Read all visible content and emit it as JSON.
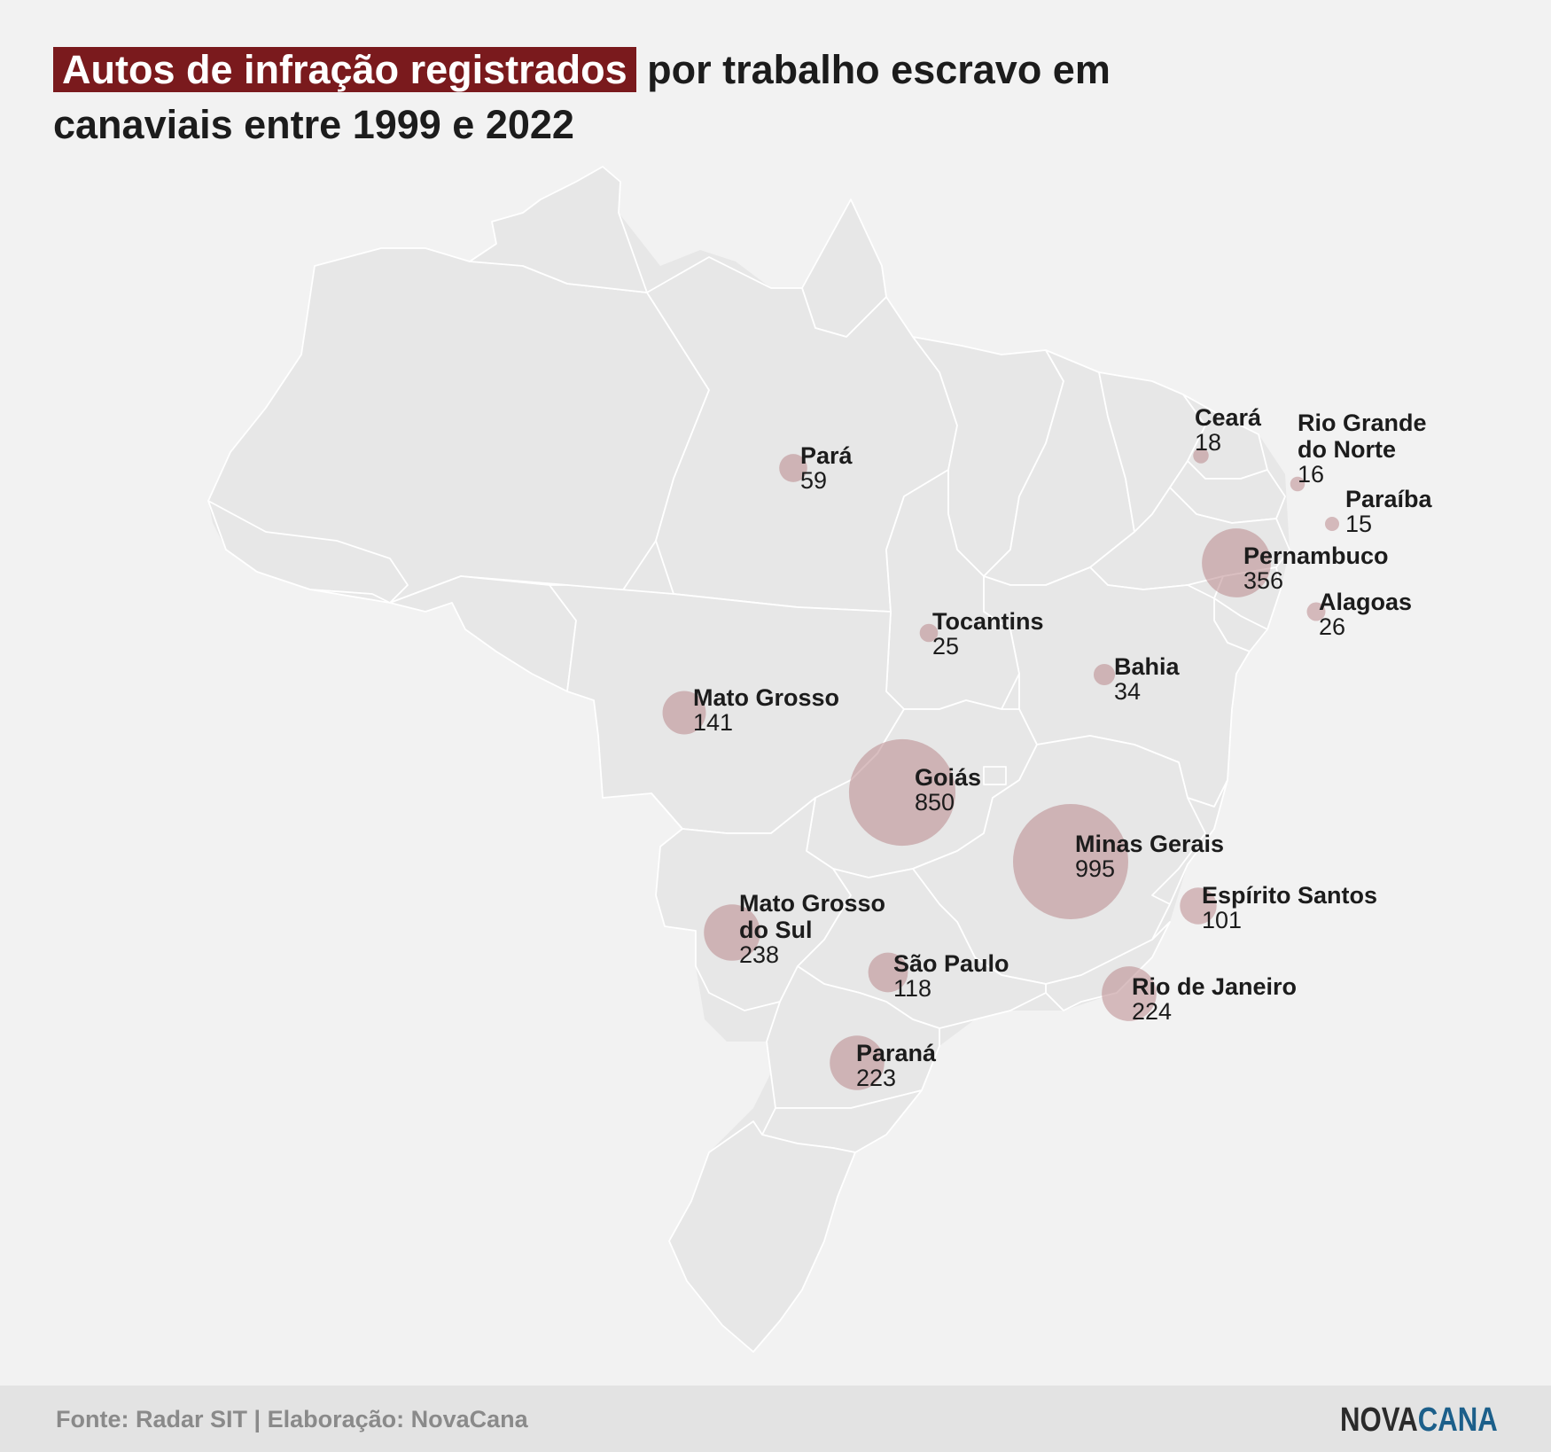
{
  "title": {
    "highlight": "Autos de infração registrados",
    "rest": " por trabalho escravo em canaviais entre 1999 e 2022"
  },
  "colors": {
    "highlight_bg": "#7a1a1d",
    "map_fill": "#e7e7e7",
    "bubble": "#b57f83",
    "logo_dark": "#2b2b2b",
    "logo_accent": "#1c5f8a"
  },
  "states": [
    {
      "name": "Pará",
      "lines": [
        "Pará"
      ],
      "value": 59
    },
    {
      "name": "Ceará",
      "lines": [
        "Ceará"
      ],
      "value": 18
    },
    {
      "name": "Rio Grande do Norte",
      "lines": [
        "Rio Grande",
        "do Norte"
      ],
      "value": 16
    },
    {
      "name": "Paraíba",
      "lines": [
        "Paraíba"
      ],
      "value": 15
    },
    {
      "name": "Pernambuco",
      "lines": [
        "Pernambuco"
      ],
      "value": 356
    },
    {
      "name": "Alagoas",
      "lines": [
        "Alagoas"
      ],
      "value": 26
    },
    {
      "name": "Tocantins",
      "lines": [
        "Tocantins"
      ],
      "value": 25
    },
    {
      "name": "Bahia",
      "lines": [
        "Bahia"
      ],
      "value": 34
    },
    {
      "name": "Mato Grosso",
      "lines": [
        "Mato Grosso"
      ],
      "value": 141
    },
    {
      "name": "Goiás",
      "lines": [
        "Goiás"
      ],
      "value": 850
    },
    {
      "name": "Minas Gerais",
      "lines": [
        "Minas Gerais"
      ],
      "value": 995
    },
    {
      "name": "Espírito Santos",
      "lines": [
        "Espírito Santos"
      ],
      "value": 101
    },
    {
      "name": "Mato Grosso do Sul",
      "lines": [
        "Mato Grosso",
        "do Sul"
      ],
      "value": 238
    },
    {
      "name": "São Paulo",
      "lines": [
        "São Paulo"
      ],
      "value": 118
    },
    {
      "name": "Rio de Janeiro",
      "lines": [
        "Rio de Janeiro"
      ],
      "value": 224
    },
    {
      "name": "Paraná",
      "lines": [
        "Paraná"
      ],
      "value": 223
    }
  ],
  "footer": {
    "source": "Fonte: Radar SIT | Elaboração: NovaCana",
    "logo_part1": "NOVA",
    "logo_part2": "CANA"
  }
}
